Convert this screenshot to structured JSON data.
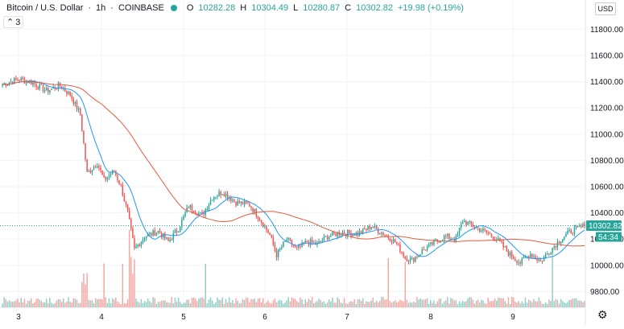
{
  "legend": {
    "symbol": "Bitcoin / U.S. Dollar",
    "interval": "1h",
    "exchange": "COINBASE",
    "open_label": "O",
    "open": "10282.28",
    "high_label": "H",
    "high": "10304.49",
    "low_label": "L",
    "low": "10280.87",
    "close_label": "C",
    "close": "10302.82",
    "change": "+19.98 (+0.19%)",
    "indicator_count": "3"
  },
  "currency_button": "USD",
  "price_tag": "10302.82",
  "countdown_tag": "54:34",
  "colors": {
    "up": "#26a69a",
    "down": "#ef5350",
    "vol_up": "#8ecfc6",
    "vol_down": "#f4a7a3",
    "ma_fast": "#2196f3",
    "ma_slow": "#e25b3f",
    "grid": "#f0f3fa",
    "axis_text": "#131722"
  },
  "icons": [
    "chevron-up-icon",
    "gear-icon"
  ],
  "chart_data": {
    "type": "candlestick",
    "y_ticks": [
      "11800.00",
      "11600.00",
      "11400.00",
      "11200.00",
      "11000.00",
      "10800.00",
      "10600.00",
      "10400.00",
      "10200.00",
      "10000.00",
      "9800.00"
    ],
    "ylim": [
      9680,
      11900
    ],
    "x_ticks": [
      "3",
      "4",
      "5",
      "6",
      "7",
      "8",
      "9"
    ],
    "grid": true,
    "last_close": 10302.82,
    "anchors": [
      [
        0,
        11380
      ],
      [
        10,
        11420
      ],
      [
        18,
        11390
      ],
      [
        26,
        11330
      ],
      [
        34,
        11370
      ],
      [
        40,
        11300
      ],
      [
        46,
        11150
      ],
      [
        50,
        10700
      ],
      [
        56,
        10780
      ],
      [
        60,
        10650
      ],
      [
        66,
        10720
      ],
      [
        70,
        10600
      ],
      [
        74,
        10400
      ],
      [
        78,
        10120
      ],
      [
        84,
        10220
      ],
      [
        92,
        10260
      ],
      [
        98,
        10180
      ],
      [
        104,
        10280
      ],
      [
        110,
        10450
      ],
      [
        118,
        10380
      ],
      [
        124,
        10520
      ],
      [
        130,
        10560
      ],
      [
        138,
        10480
      ],
      [
        146,
        10460
      ],
      [
        152,
        10360
      ],
      [
        158,
        10230
      ],
      [
        162,
        10080
      ],
      [
        168,
        10200
      ],
      [
        174,
        10120
      ],
      [
        180,
        10180
      ],
      [
        186,
        10160
      ],
      [
        192,
        10220
      ],
      [
        200,
        10250
      ],
      [
        210,
        10240
      ],
      [
        218,
        10300
      ],
      [
        224,
        10250
      ],
      [
        232,
        10180
      ],
      [
        238,
        10060
      ],
      [
        242,
        10040
      ],
      [
        248,
        10110
      ],
      [
        256,
        10180
      ],
      [
        262,
        10220
      ],
      [
        268,
        10200
      ],
      [
        272,
        10340
      ],
      [
        278,
        10300
      ],
      [
        286,
        10250
      ],
      [
        292,
        10200
      ],
      [
        300,
        10080
      ],
      [
        306,
        10020
      ],
      [
        312,
        10090
      ],
      [
        318,
        10030
      ],
      [
        324,
        10120
      ],
      [
        330,
        10200
      ],
      [
        336,
        10260
      ],
      [
        344,
        10300
      ]
    ],
    "series": [
      {
        "name": "",
        "kind": "ma_fast",
        "color": "#2196f3"
      },
      {
        "name": "",
        "kind": "ma_slow",
        "color": "#e25b3f"
      }
    ]
  }
}
